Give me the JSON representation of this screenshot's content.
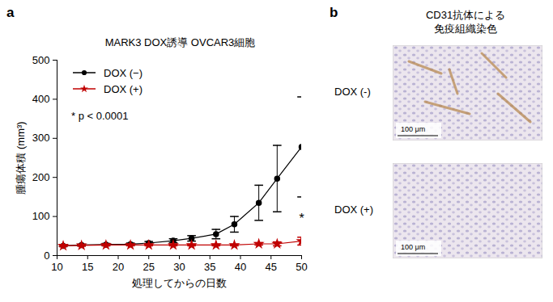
{
  "chart_data": {
    "type": "line",
    "panel_label": "a",
    "title": "MARK3 DOX誘導 OVCAR3細胞",
    "x_label": "処理してからの日数",
    "y_label": "腫瘍体積 (mm³)",
    "x": [
      11,
      14,
      18,
      22,
      25,
      29,
      32,
      36,
      39,
      43,
      46,
      50
    ],
    "series": [
      {
        "name": "DOX (−)",
        "color": "#000000",
        "marker": "circle",
        "line_style": "solid",
        "values": [
          25,
          27,
          28,
          29,
          32,
          38,
          44,
          55,
          80,
          135,
          197,
          278
        ],
        "errors": [
          2,
          2,
          3,
          3,
          4,
          5,
          7,
          12,
          20,
          45,
          85,
          128
        ]
      },
      {
        "name": "DOX (+)",
        "color": "#c00000",
        "marker": "star",
        "line_style": "solid",
        "values": [
          25,
          26,
          27,
          27,
          27,
          27,
          27,
          27,
          27,
          30,
          30,
          37
        ],
        "errors": [
          2,
          2,
          2,
          2,
          2,
          2,
          2,
          2,
          2,
          3,
          5,
          10
        ]
      }
    ],
    "xlim": [
      10,
      50
    ],
    "xticks": [
      10,
      15,
      20,
      25,
      30,
      35,
      40,
      45,
      50
    ],
    "ylim": [
      0,
      500
    ],
    "yticks": [
      0,
      100,
      200,
      300,
      400,
      500
    ],
    "grid": false,
    "legend": "top-left",
    "annotations": [
      {
        "text": "* p < 0.0001"
      },
      {
        "text": "*",
        "x": 50,
        "y": 95
      }
    ]
  },
  "panel_b": {
    "panel_label": "b",
    "title_lines": [
      "CD31抗体による",
      "免疫組織染色"
    ],
    "images": [
      {
        "label": "DOX (-)",
        "scale_bar": "100 μm"
      },
      {
        "label": "DOX (+)",
        "scale_bar": "100 μm"
      }
    ]
  }
}
